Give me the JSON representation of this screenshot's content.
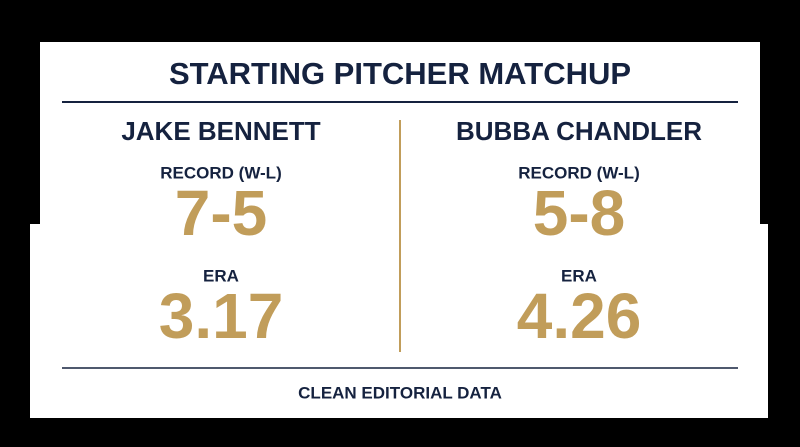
{
  "header": {
    "title": "STARTING PITCHER MATCHUP"
  },
  "pitchers": [
    {
      "name": "JAKE BENNETT",
      "stats": [
        {
          "label": "RECORD (W-L)",
          "value": "7-5"
        },
        {
          "label": "ERA",
          "value": "3.17"
        }
      ]
    },
    {
      "name": "BUBBA CHANDLER",
      "stats": [
        {
          "label": "RECORD (W-L)",
          "value": "5-8"
        },
        {
          "label": "ERA",
          "value": "4.26"
        }
      ]
    }
  ],
  "footer": "CLEAN EDITORIAL DATA"
}
